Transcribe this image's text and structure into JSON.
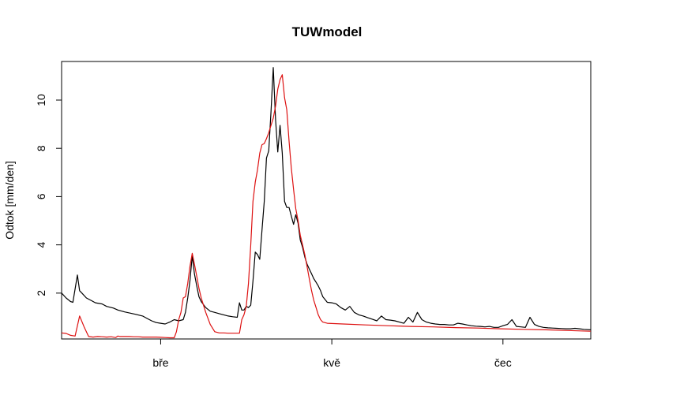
{
  "chart_data": {
    "type": "line",
    "title": "TUWmodel",
    "xlabel": "",
    "ylabel": "Odtok [mm/den]",
    "xlim": [
      0,
      235
    ],
    "ylim": [
      0.1,
      11.6
    ],
    "y_ticks": [
      2,
      4,
      6,
      8,
      10
    ],
    "x_ticks": [
      {
        "value": 44,
        "label": "bře"
      },
      {
        "value": 120,
        "label": "kvě"
      },
      {
        "value": 196,
        "label": "čec"
      }
    ],
    "grid": false,
    "legend": "none",
    "series": [
      {
        "color": "#000000",
        "x": [
          0,
          2,
          4,
          5,
          7,
          8,
          9,
          11,
          13,
          15,
          18,
          20,
          23,
          25,
          28,
          30,
          33,
          36,
          38,
          40,
          42,
          44,
          46,
          48,
          50,
          52,
          54,
          55,
          56,
          57,
          58,
          59,
          60,
          61,
          62,
          64,
          66,
          68,
          70,
          72,
          74,
          76,
          78,
          79,
          80,
          81,
          82,
          83,
          84,
          85,
          86,
          87,
          88,
          89,
          90,
          91,
          92,
          93,
          94,
          95,
          96,
          97,
          98,
          99,
          100,
          101,
          102,
          103,
          104,
          105,
          106,
          107,
          108,
          109,
          110,
          111,
          112,
          113,
          114,
          115,
          116,
          118,
          120,
          122,
          124,
          126,
          128,
          130,
          132,
          134,
          136,
          138,
          140,
          142,
          144,
          146,
          148,
          150,
          152,
          154,
          156,
          158,
          160,
          162,
          164,
          166,
          168,
          170,
          172,
          174,
          176,
          178,
          180,
          182,
          184,
          186,
          188,
          190,
          192,
          194,
          196,
          198,
          200,
          202,
          204,
          206,
          208,
          210,
          212,
          214,
          216,
          218,
          220,
          222,
          224,
          226,
          228,
          230,
          232,
          235
        ],
        "y": [
          2.0,
          1.8,
          1.65,
          1.62,
          2.75,
          2.1,
          2.0,
          1.8,
          1.7,
          1.6,
          1.55,
          1.45,
          1.38,
          1.3,
          1.22,
          1.18,
          1.12,
          1.05,
          0.95,
          0.85,
          0.78,
          0.75,
          0.72,
          0.8,
          0.9,
          0.85,
          0.9,
          1.2,
          1.8,
          2.5,
          3.55,
          2.8,
          2.3,
          1.85,
          1.65,
          1.4,
          1.25,
          1.2,
          1.15,
          1.1,
          1.05,
          1.02,
          1.0,
          1.6,
          1.3,
          1.3,
          1.45,
          1.4,
          1.5,
          2.5,
          3.7,
          3.6,
          3.4,
          4.6,
          5.8,
          7.6,
          7.9,
          9.5,
          11.35,
          9.2,
          7.85,
          8.95,
          7.8,
          5.8,
          5.55,
          5.55,
          5.2,
          4.85,
          5.25,
          4.9,
          4.2,
          3.9,
          3.5,
          3.2,
          3.0,
          2.8,
          2.6,
          2.45,
          2.3,
          2.1,
          1.85,
          1.62,
          1.6,
          1.55,
          1.4,
          1.3,
          1.45,
          1.2,
          1.1,
          1.05,
          0.98,
          0.92,
          0.85,
          1.05,
          0.9,
          0.88,
          0.85,
          0.8,
          0.75,
          1.0,
          0.8,
          1.2,
          0.9,
          0.8,
          0.75,
          0.72,
          0.7,
          0.7,
          0.68,
          0.68,
          0.75,
          0.72,
          0.68,
          0.65,
          0.63,
          0.62,
          0.6,
          0.62,
          0.58,
          0.58,
          0.65,
          0.7,
          0.9,
          0.62,
          0.6,
          0.58,
          1.0,
          0.7,
          0.62,
          0.58,
          0.56,
          0.55,
          0.54,
          0.53,
          0.52,
          0.52,
          0.54,
          0.52,
          0.5,
          0.48
        ]
      },
      {
        "color": "#dd1111",
        "x": [
          0,
          2,
          4,
          6,
          8,
          10,
          12,
          14,
          16,
          18,
          20,
          22,
          24,
          25,
          26,
          28,
          30,
          32,
          34,
          36,
          38,
          40,
          42,
          44,
          46,
          48,
          50,
          51,
          52,
          53,
          54,
          55,
          56,
          57,
          58,
          59,
          60,
          61,
          62,
          64,
          66,
          68,
          70,
          72,
          74,
          76,
          78,
          79,
          80,
          81,
          82,
          83,
          84,
          85,
          86,
          87,
          88,
          89,
          90,
          91,
          92,
          93,
          94,
          95,
          96,
          97,
          98,
          99,
          100,
          101,
          102,
          103,
          104,
          105,
          106,
          107,
          108,
          109,
          110,
          111,
          112,
          113,
          114,
          115,
          116,
          118,
          120,
          125,
          135,
          145,
          155,
          165,
          175,
          185,
          195,
          205,
          215,
          225,
          235
        ],
        "y": [
          0.35,
          0.33,
          0.25,
          0.22,
          1.05,
          0.6,
          0.2,
          0.18,
          0.2,
          0.19,
          0.18,
          0.19,
          0.16,
          0.22,
          0.2,
          0.2,
          0.2,
          0.19,
          0.19,
          0.18,
          0.18,
          0.18,
          0.18,
          0.17,
          0.16,
          0.15,
          0.15,
          0.4,
          0.9,
          1.2,
          1.8,
          1.85,
          2.4,
          3.1,
          3.65,
          3.2,
          2.7,
          2.2,
          1.8,
          1.2,
          0.7,
          0.4,
          0.35,
          0.35,
          0.34,
          0.34,
          0.34,
          0.34,
          0.9,
          1.1,
          1.45,
          2.4,
          4.0,
          5.8,
          6.6,
          7.1,
          7.8,
          8.15,
          8.2,
          8.4,
          8.65,
          8.95,
          9.25,
          9.75,
          10.45,
          10.85,
          11.05,
          10.1,
          9.6,
          8.3,
          7.2,
          6.3,
          5.5,
          5.0,
          4.4,
          4.0,
          3.6,
          3.1,
          2.6,
          2.1,
          1.7,
          1.4,
          1.1,
          0.9,
          0.8,
          0.75,
          0.74,
          0.72,
          0.68,
          0.65,
          0.62,
          0.6,
          0.57,
          0.55,
          0.52,
          0.5,
          0.48,
          0.45,
          0.42
        ]
      }
    ]
  }
}
